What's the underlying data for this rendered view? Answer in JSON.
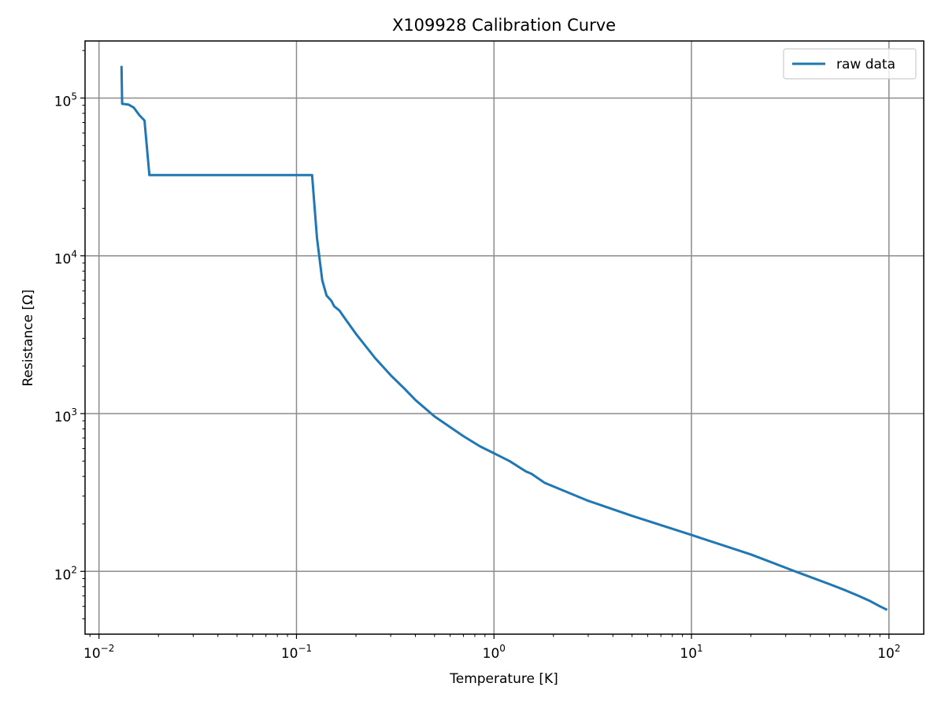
{
  "chart_data": {
    "type": "line",
    "title": "X109928 Calibration Curve",
    "xlabel": "Temperature [K]",
    "ylabel": "Resistance [Ω]",
    "xscale": "log",
    "yscale": "log",
    "xlim": [
      0.0085,
      150
    ],
    "ylim": [
      40,
      230000
    ],
    "grid": true,
    "legend_position": "top-right",
    "x_ticks": [
      {
        "value": 0.01,
        "base": "10",
        "exp": "−2"
      },
      {
        "value": 0.1,
        "base": "10",
        "exp": "−1"
      },
      {
        "value": 1,
        "base": "10",
        "exp": "0"
      },
      {
        "value": 10,
        "base": "10",
        "exp": "1"
      },
      {
        "value": 100,
        "base": "10",
        "exp": "2"
      }
    ],
    "y_ticks": [
      {
        "value": 100,
        "base": "10",
        "exp": "2"
      },
      {
        "value": 1000,
        "base": "10",
        "exp": "3"
      },
      {
        "value": 10000,
        "base": "10",
        "exp": "4"
      },
      {
        "value": 100000,
        "base": "10",
        "exp": "5"
      }
    ],
    "colors": {
      "series": "#1f77b4",
      "grid": "#8c8c8c",
      "axes": "#000000"
    },
    "series": [
      {
        "name": "raw data",
        "x": [
          0.013,
          0.0131,
          0.0141,
          0.015,
          0.016,
          0.017,
          0.018,
          0.05,
          0.1,
          0.12,
          0.127,
          0.135,
          0.142,
          0.15,
          0.155,
          0.165,
          0.175,
          0.2,
          0.25,
          0.3,
          0.35,
          0.4,
          0.5,
          0.7,
          0.85,
          1.0,
          1.2,
          1.45,
          1.55,
          1.8,
          3,
          5,
          10,
          20,
          35,
          50,
          60,
          70,
          80,
          90,
          98
        ],
        "y": [
          160000,
          92000,
          91000,
          87000,
          78000,
          72000,
          32500,
          32500,
          32500,
          32500,
          13000,
          7000,
          5600,
          5200,
          4800,
          4500,
          4050,
          3200,
          2250,
          1750,
          1450,
          1220,
          960,
          720,
          620,
          560,
          500,
          430,
          415,
          365,
          280,
          225,
          170,
          128,
          98,
          83,
          76,
          70,
          65,
          60,
          57
        ]
      }
    ]
  }
}
